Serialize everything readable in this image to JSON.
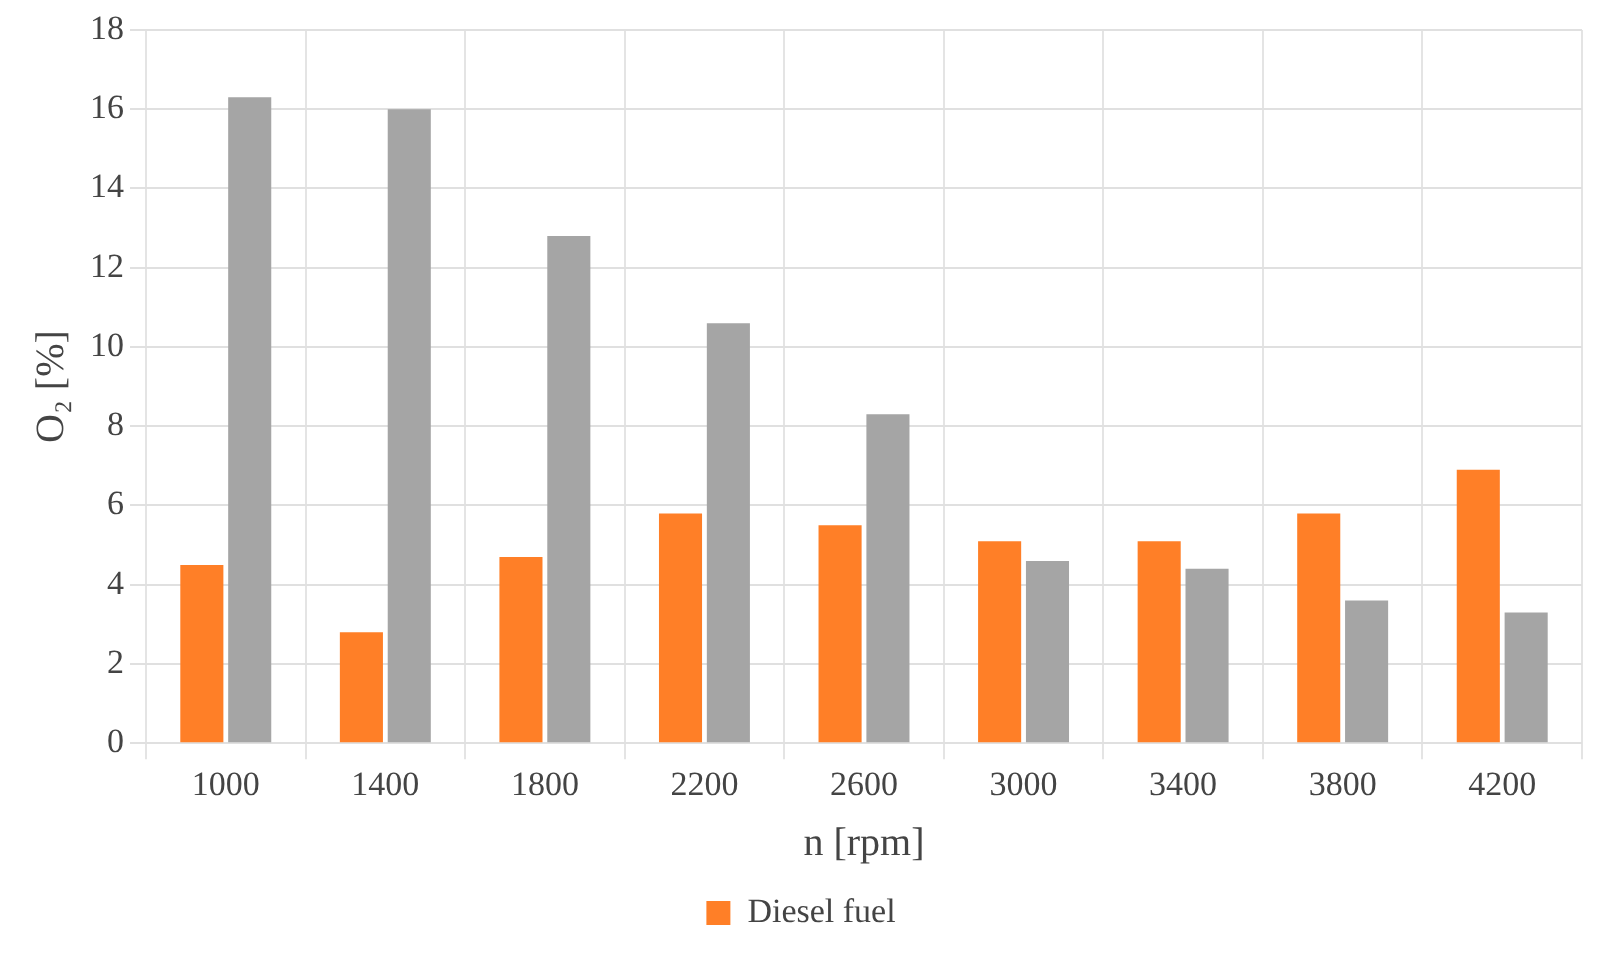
{
  "chart_data": {
    "type": "bar",
    "xlabel": "n [rpm]",
    "ylabel": "O₂ [%]",
    "categories": [
      "1000",
      "1400",
      "1800",
      "2200",
      "2600",
      "3000",
      "3400",
      "3800",
      "4200"
    ],
    "series": [
      {
        "name": "Diesel fuel",
        "color": "#ff7f27",
        "values": [
          4.5,
          2.8,
          4.7,
          5.8,
          5.5,
          5.1,
          5.1,
          5.8,
          6.9
        ]
      },
      {
        "color": "#a5a5a5",
        "values": [
          16.3,
          16.0,
          12.8,
          10.6,
          8.3,
          4.6,
          4.4,
          3.6,
          3.3
        ]
      }
    ],
    "ylim": [
      0,
      18
    ],
    "yticks": [
      0,
      2,
      4,
      6,
      8,
      10,
      12,
      14,
      16,
      18
    ],
    "grid": true,
    "legend": "bottom"
  }
}
